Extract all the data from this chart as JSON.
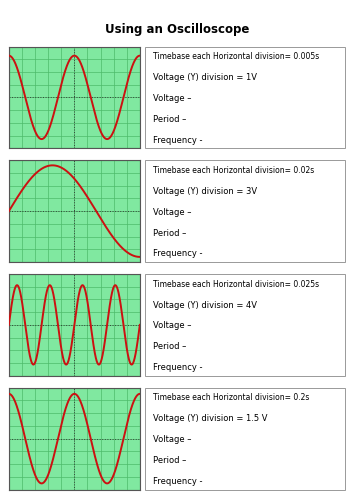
{
  "title": "Using an Oscilloscope",
  "panels": [
    {
      "timebase": "Timebase each Horizontal division= 0.005s",
      "voltage_div": "Voltage (Y) division = 1V",
      "sine_cycles": 2.0,
      "sine_amplitude": 0.82,
      "sine_phase": 1.57
    },
    {
      "timebase": "Timebase each Horizontal division= 0.02s",
      "voltage_div": "Voltage (Y) division = 3V",
      "sine_cycles": 0.75,
      "sine_amplitude": 0.9,
      "sine_phase": 0.0
    },
    {
      "timebase": "Timebase each Horizontal division= 0.025s",
      "voltage_div": "Voltage (Y) division = 4V",
      "sine_cycles": 4.0,
      "sine_amplitude": 0.78,
      "sine_phase": 0.0
    },
    {
      "timebase": "Timebase each Horizontal division= 0.2s",
      "voltage_div": "Voltage (Y) division = 1.5 V",
      "sine_cycles": 2.0,
      "sine_amplitude": 0.88,
      "sine_phase": 1.57
    }
  ],
  "grid_color": "#4dbb6a",
  "grid_bg": "#80e8a0",
  "sine_color": "#cc1111",
  "grid_cols": 10,
  "grid_rows": 8,
  "label_lines": [
    "Voltage –",
    "Period –",
    "Frequency -"
  ]
}
